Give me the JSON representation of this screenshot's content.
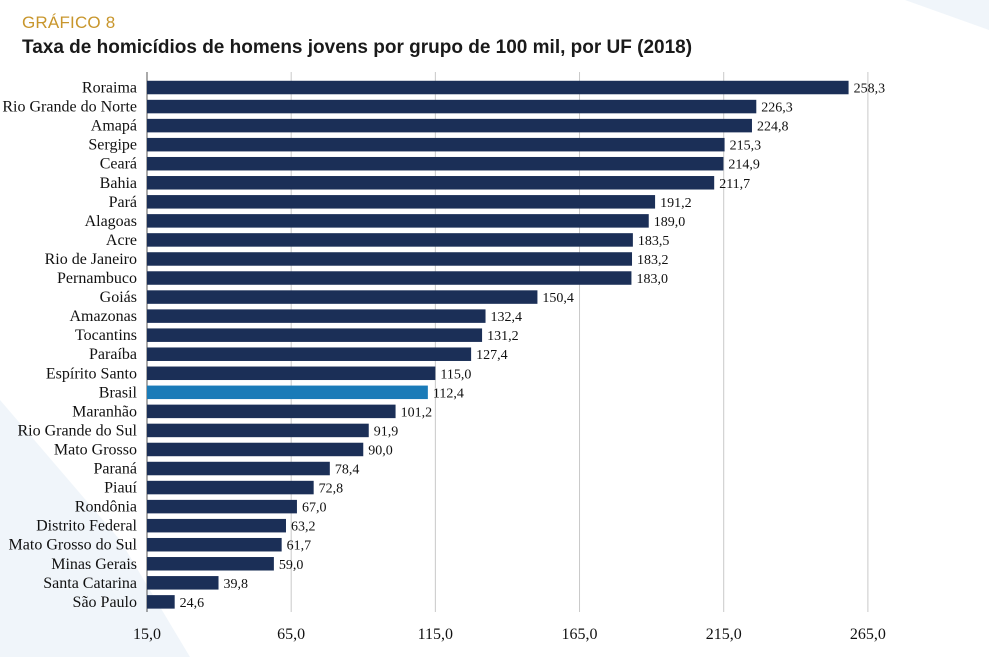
{
  "header": {
    "label": "GRÁFICO 8",
    "title": "Taxa de homicídios de homens jovens por grupo de 100 mil, por UF (2018)"
  },
  "colors": {
    "bar": "#1b2f57",
    "highlight": "#1a7bb8",
    "grid": "#c9c9c9",
    "label_accent": "#c8962c"
  },
  "chart_data": {
    "type": "bar",
    "orientation": "horizontal",
    "title": "Taxa de homicídios de homens jovens por grupo de 100 mil, por UF (2018)",
    "categories": [
      "Roraima",
      "Rio Grande do Norte",
      "Amapá",
      "Sergipe",
      "Ceará",
      "Bahia",
      "Pará",
      "Alagoas",
      "Acre",
      "Rio de Janeiro",
      "Pernambuco",
      "Goiás",
      "Amazonas",
      "Tocantins",
      "Paraíba",
      "Espírito Santo",
      "Brasil",
      "Maranhão",
      "Rio Grande do Sul",
      "Mato Grosso",
      "Paraná",
      "Piauí",
      "Rondônia",
      "Distrito Federal",
      "Mato Grosso do Sul",
      "Minas Gerais",
      "Santa Catarina",
      "São Paulo"
    ],
    "values": [
      258.3,
      226.3,
      224.8,
      215.3,
      214.9,
      211.7,
      191.2,
      189.0,
      183.5,
      183.2,
      183.0,
      150.4,
      132.4,
      131.2,
      127.4,
      115.0,
      112.4,
      101.2,
      91.9,
      90.0,
      78.4,
      72.8,
      67.0,
      63.2,
      61.7,
      59.0,
      39.8,
      24.6
    ],
    "value_labels": [
      "258,3",
      "226,3",
      "224,8",
      "215,3",
      "214,9",
      "211,7",
      "191,2",
      "189,0",
      "183,5",
      "183,2",
      "183,0",
      "150,4",
      "132,4",
      "131,2",
      "127,4",
      "115,0",
      "112,4",
      "101,2",
      "91,9",
      "90,0",
      "78,4",
      "72,8",
      "67,0",
      "63,2",
      "61,7",
      "59,0",
      "39,8",
      "24,6"
    ],
    "highlight_category": "Brasil",
    "xlim": [
      15,
      307
    ],
    "xticks": [
      15,
      65,
      115,
      165,
      215,
      265
    ],
    "xtick_labels": [
      "15,0",
      "65,0",
      "115,0",
      "165,0",
      "215,0",
      "265,0"
    ],
    "grid": true,
    "xlabel": "",
    "ylabel": ""
  }
}
